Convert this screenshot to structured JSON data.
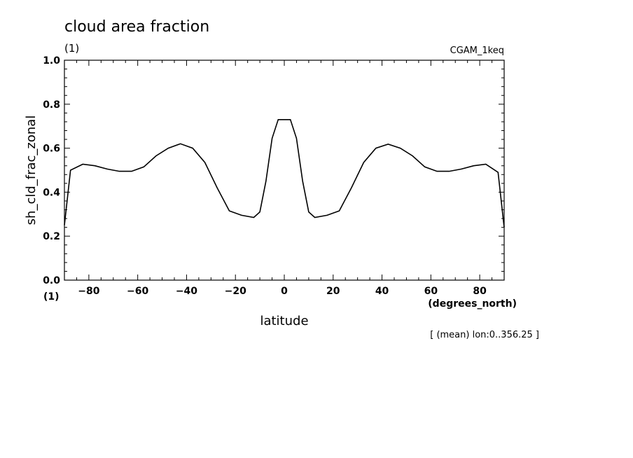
{
  "chart_data": {
    "type": "line",
    "title": "cloud area fraction",
    "subtitle": "(1)",
    "run_label": "CGAM_1keq",
    "ylabel": "sh_cld_frac_zonal",
    "xlabel": "latitude",
    "x_units": "(degrees_north)",
    "y_units": "(1)",
    "footnote": "[ (mean) lon:0..356.25 ]",
    "xlim": [
      -90,
      90
    ],
    "ylim": [
      0,
      1
    ],
    "x_major_ticks": [
      -80,
      -60,
      -40,
      -20,
      0,
      20,
      40,
      60,
      80
    ],
    "y_major_ticks": [
      0.0,
      0.2,
      0.4,
      0.6,
      0.8,
      1.0
    ],
    "x_tick_labels": [
      "−80",
      "−60",
      "−40",
      "−20",
      "0",
      "20",
      "40",
      "60",
      "80"
    ],
    "y_tick_labels": [
      "0.0",
      "0.2",
      "0.4",
      "0.6",
      "0.8",
      "1.0"
    ],
    "grid": false,
    "line_color": "#000000",
    "series": [
      {
        "x": [
          -90,
          -87.5,
          -82.5,
          -77.5,
          -72.5,
          -67.5,
          -62.5,
          -57.5,
          -52.5,
          -47.5,
          -42.5,
          -37.5,
          -32.5,
          -27.5,
          -22.5,
          -17.5,
          -12.5,
          -10,
          -7.5,
          -5,
          -2.5,
          2.5,
          5,
          7.5,
          10,
          12.5,
          17.5,
          22.5,
          27.5,
          32.5,
          37.5,
          42.5,
          47.5,
          52.5,
          57.5,
          62.5,
          67.5,
          72.5,
          77.5,
          82.5,
          87.5,
          90
        ],
        "y": [
          0.25,
          0.5,
          0.527,
          0.52,
          0.505,
          0.495,
          0.495,
          0.515,
          0.565,
          0.6,
          0.62,
          0.6,
          0.535,
          0.42,
          0.315,
          0.295,
          0.285,
          0.31,
          0.45,
          0.645,
          0.73,
          0.73,
          0.645,
          0.45,
          0.31,
          0.285,
          0.295,
          0.315,
          0.42,
          0.535,
          0.6,
          0.618,
          0.6,
          0.565,
          0.515,
          0.495,
          0.495,
          0.505,
          0.52,
          0.527,
          0.49,
          0.24
        ]
      }
    ]
  }
}
